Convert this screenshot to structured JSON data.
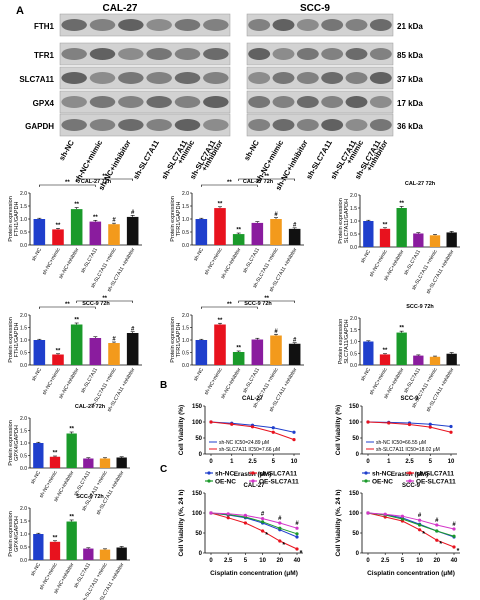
{
  "panel_labels": {
    "a": "A",
    "b": "B",
    "c": "C"
  },
  "blot": {
    "left_title": "CAL-27",
    "right_title": "SCC-9",
    "rows": [
      {
        "label": "FTH1",
        "kda": "21 kDa"
      },
      {
        "label": "TFR1",
        "kda": "85 kDa"
      },
      {
        "label": "SLC7A11",
        "kda": "37 kDa"
      },
      {
        "label": "GPX4",
        "kda": "17 kDa"
      },
      {
        "label": "GAPDH",
        "kda": "36 kDa"
      }
    ],
    "lanes": [
      "sh-NC",
      "sh-NC+mimic",
      "sh-NC+inhibitor",
      "sh-SLC7A11",
      "sh-SLC7A11 +mimic",
      "sh-SLC7A11 +inhibitor"
    ]
  },
  "chart_data": [
    {
      "id": "b1",
      "type": "bar",
      "title": "CAL-27 72h",
      "ylabel": "Protein expression FTH1/GAPDH",
      "ylim": [
        0,
        2
      ],
      "yticks": [
        "0.0",
        "0.5",
        "1.0",
        "1.5",
        "2.0"
      ],
      "categories": [
        "sh-NC",
        "sh-NC+mimic",
        "sh-NC+inhibitor",
        "sh-SLC7A11",
        "sh-SLC7A11 +mimic",
        "sh-SLC7A11 +inhibitor"
      ],
      "values": [
        1.0,
        0.6,
        1.38,
        0.9,
        0.8,
        1.08
      ],
      "errors": [
        0.03,
        0.04,
        0.06,
        0.05,
        0.04,
        0.06
      ],
      "sig": [
        "",
        "**",
        "**",
        "**",
        "#",
        "#"
      ],
      "colors": [
        "#1f3fcc",
        "#e8121e",
        "#1a9a2a",
        "#8a1c9e",
        "#f39a1c",
        "#111111"
      ],
      "brackets": [
        {
          "from": 0,
          "to": 3,
          "label": "**",
          "level": 1
        },
        {
          "from": 2,
          "to": 5,
          "label": "**",
          "level": 2
        }
      ]
    },
    {
      "id": "b2",
      "type": "bar",
      "title": "CAL-27 72h",
      "ylabel": "Protein expression TFR1/GAPDH",
      "ylim": [
        0,
        2
      ],
      "yticks": [
        "0.0",
        "0.5",
        "1.0",
        "1.5",
        "2.0"
      ],
      "categories": [
        "sh-NC",
        "sh-NC+mimic",
        "sh-NC+inhibitor",
        "sh-SLC7A11",
        "sh-SLC7A11 +mimic",
        "sh-SLC7A11 +inhibitor"
      ],
      "values": [
        1.0,
        1.42,
        0.42,
        0.85,
        1.0,
        0.62
      ],
      "errors": [
        0.03,
        0.05,
        0.04,
        0.05,
        0.05,
        0.04
      ],
      "sig": [
        "",
        "**",
        "**",
        "",
        "#",
        "#"
      ],
      "colors": [
        "#1f3fcc",
        "#e8121e",
        "#1a9a2a",
        "#8a1c9e",
        "#f39a1c",
        "#111111"
      ],
      "brackets": [
        {
          "from": 0,
          "to": 3,
          "label": "**",
          "level": 1
        },
        {
          "from": 2,
          "to": 5,
          "label": "**",
          "level": 2
        }
      ]
    },
    {
      "id": "b3",
      "type": "bar",
      "title": "CAL-27 72h",
      "ylabel": "Protein expression SLC7A11/GAPDH",
      "ylim": [
        0,
        2
      ],
      "yticks": [
        "0.0",
        "0.5",
        "1.0",
        "1.5",
        "2.0"
      ],
      "categories": [
        "sh-NC",
        "sh-NC+mimic",
        "sh-NC+inhibitor",
        "sh-SLC7A11",
        "sh-SLC7A11 +mimic",
        "sh-SLC7A11 +inhibitor"
      ],
      "values": [
        1.0,
        0.7,
        1.5,
        0.52,
        0.45,
        0.56
      ],
      "errors": [
        0.03,
        0.04,
        0.06,
        0.03,
        0.03,
        0.04
      ],
      "sig": [
        "",
        "**",
        "**",
        "",
        "",
        ""
      ],
      "colors": [
        "#1f3fcc",
        "#e8121e",
        "#1a9a2a",
        "#8a1c9e",
        "#f39a1c",
        "#111111"
      ],
      "brackets": []
    },
    {
      "id": "b4",
      "type": "bar",
      "title": "SCC-9 72h",
      "ylabel": "Protein expression FTH1/GAPDH",
      "ylim": [
        0,
        2
      ],
      "yticks": [
        "0.0",
        "0.5",
        "1.0",
        "1.5",
        "2.0"
      ],
      "categories": [
        "sh-NC",
        "sh-NC+mimic",
        "sh-NC+inhibitor",
        "sh-SLC7A11",
        "sh-SLC7A11 +mimic",
        "sh-SLC7A11 +inhibitor"
      ],
      "values": [
        1.0,
        0.42,
        1.62,
        1.08,
        0.88,
        1.28
      ],
      "errors": [
        0.03,
        0.03,
        0.06,
        0.05,
        0.04,
        0.05
      ],
      "sig": [
        "",
        "**",
        "**",
        "",
        "#",
        "#"
      ],
      "colors": [
        "#1f3fcc",
        "#e8121e",
        "#1a9a2a",
        "#8a1c9e",
        "#f39a1c",
        "#111111"
      ],
      "brackets": [
        {
          "from": 0,
          "to": 3,
          "label": "**",
          "level": 1
        },
        {
          "from": 2,
          "to": 5,
          "label": "**",
          "level": 2
        }
      ]
    },
    {
      "id": "b5",
      "type": "bar",
      "title": "SCC-9 72h",
      "ylabel": "Protein expression TFR1/GAPDH",
      "ylim": [
        0,
        2
      ],
      "yticks": [
        "0.0",
        "0.5",
        "1.0",
        "1.5",
        "2.0"
      ],
      "categories": [
        "sh-NC",
        "sh-NC+mimic",
        "sh-NC+inhibitor",
        "sh-SLC7A11",
        "sh-SLC7A11 +mimic",
        "sh-SLC7A11 +inhibitor"
      ],
      "values": [
        1.0,
        1.62,
        0.52,
        1.02,
        1.18,
        0.85
      ],
      "errors": [
        0.03,
        0.05,
        0.04,
        0.05,
        0.05,
        0.04
      ],
      "sig": [
        "",
        "**",
        "**",
        "",
        "#",
        "#"
      ],
      "colors": [
        "#1f3fcc",
        "#e8121e",
        "#1a9a2a",
        "#8a1c9e",
        "#f39a1c",
        "#111111"
      ],
      "brackets": [
        {
          "from": 0,
          "to": 3,
          "label": "**",
          "level": 1
        },
        {
          "from": 2,
          "to": 5,
          "label": "**",
          "level": 2
        }
      ]
    },
    {
      "id": "b6",
      "type": "bar",
      "title": "SCC-9 72h",
      "ylabel": "Protein expression SLC7A11/GAPDH",
      "ylim": [
        0,
        2
      ],
      "yticks": [
        "0.0",
        "0.5",
        "1.0",
        "1.5",
        "2.0"
      ],
      "categories": [
        "sh-NC",
        "sh-NC+mimic",
        "sh-NC+inhibitor",
        "sh-SLC7A11",
        "sh-SLC7A11 +mimic",
        "sh-SLC7A11 +inhibitor"
      ],
      "values": [
        1.0,
        0.45,
        1.38,
        0.4,
        0.35,
        0.48
      ],
      "errors": [
        0.03,
        0.03,
        0.06,
        0.03,
        0.03,
        0.05
      ],
      "sig": [
        "",
        "**",
        "**",
        "",
        "",
        ""
      ],
      "colors": [
        "#1f3fcc",
        "#e8121e",
        "#1a9a2a",
        "#8a1c9e",
        "#f39a1c",
        "#111111"
      ],
      "brackets": []
    },
    {
      "id": "b7",
      "type": "bar",
      "title": "CAL-27 72h",
      "ylabel": "Protein expression GPX4/GAPDH",
      "ylim": [
        0,
        2
      ],
      "yticks": [
        "0.0",
        "0.5",
        "1.0",
        "1.5",
        "2.0"
      ],
      "categories": [
        "sh-NC",
        "sh-NC+mimic",
        "sh-NC+inhibitor",
        "sh-SLC7A11",
        "sh-SLC7A11 +mimic",
        "sh-SLC7A11 +inhibitor"
      ],
      "values": [
        1.0,
        0.45,
        1.38,
        0.38,
        0.38,
        0.42
      ],
      "errors": [
        0.03,
        0.03,
        0.06,
        0.03,
        0.03,
        0.03
      ],
      "sig": [
        "",
        "**",
        "**",
        "",
        "",
        ""
      ],
      "colors": [
        "#1f3fcc",
        "#e8121e",
        "#1a9a2a",
        "#8a1c9e",
        "#f39a1c",
        "#111111"
      ],
      "brackets": []
    },
    {
      "id": "b8",
      "type": "bar",
      "title": "SCC-9 72h",
      "ylabel": "Protein expression GPX4/GAPDH",
      "ylim": [
        0,
        2
      ],
      "yticks": [
        "0.0",
        "0.5",
        "1.0",
        "1.5",
        "2.0"
      ],
      "categories": [
        "sh-NC",
        "sh-NC+mimic",
        "sh-NC+inhibitor",
        "sh-SLC7A11",
        "sh-SLC7A11 +mimic",
        "sh-SLC7A11 +inhibitor"
      ],
      "values": [
        1.0,
        0.7,
        1.48,
        0.44,
        0.4,
        0.48
      ],
      "errors": [
        0.03,
        0.04,
        0.06,
        0.03,
        0.03,
        0.04
      ],
      "sig": [
        "",
        "**",
        "**",
        "",
        "",
        ""
      ],
      "colors": [
        "#1f3fcc",
        "#e8121e",
        "#1a9a2a",
        "#8a1c9e",
        "#f39a1c",
        "#111111"
      ],
      "brackets": []
    },
    {
      "id": "l1",
      "type": "line",
      "title": "CAL-27",
      "ylabel": "Cell Viability (%)",
      "xlabel": "Erastin (μM)",
      "ylim": [
        0,
        150
      ],
      "yticks": [
        "0",
        "50",
        "100",
        "150"
      ],
      "x": [
        "0",
        "1",
        "2.5",
        "5",
        "10"
      ],
      "series": [
        {
          "name": "sh-NC",
          "label": "sh-NC IC50=24.89 μM",
          "color": "#1f3fcc",
          "values": [
            100,
            96,
            90,
            82,
            68
          ]
        },
        {
          "name": "sh-SLC7A11",
          "label": "sh-SLC7A11 IC50=7.66 μM",
          "color": "#e8121e",
          "values": [
            100,
            93,
            85,
            68,
            45
          ]
        }
      ]
    },
    {
      "id": "l2",
      "type": "line",
      "title": "SCC-9",
      "ylabel": "Cell Viability (%)",
      "xlabel": "Erastin (μM)",
      "ylim": [
        0,
        150
      ],
      "yticks": [
        "0",
        "50",
        "100",
        "150"
      ],
      "x": [
        "0",
        "1",
        "2.5",
        "5",
        "10"
      ],
      "series": [
        {
          "name": "sh-NC",
          "label": "sh-NC IC50=66.55 μM",
          "color": "#1f3fcc",
          "values": [
            100,
            99,
            97,
            93,
            86
          ]
        },
        {
          "name": "sh-SLC7A11",
          "label": "sh-SLC7A11 IC50=18.02 μM",
          "color": "#e8121e",
          "values": [
            100,
            97,
            92,
            84,
            68
          ]
        }
      ]
    },
    {
      "id": "c1",
      "type": "line",
      "title": "CAL-27",
      "ylabel": "Cell Viability (%, 24 h)",
      "xlabel": "Cisplatin concentration (μM)",
      "ylim": [
        0,
        150
      ],
      "yticks": [
        "0",
        "50",
        "100",
        "150"
      ],
      "x": [
        "0",
        "2.5",
        "5",
        "10",
        "20",
        "40"
      ],
      "sig": [
        "",
        "",
        "",
        "#",
        "#",
        "#"
      ],
      "series": [
        {
          "name": "sh-NC",
          "color": "#1f3fcc",
          "values": [
            100,
            95,
            88,
            75,
            58,
            40
          ]
        },
        {
          "name": "sh-SLC7A11",
          "color": "#e8121e",
          "values": [
            100,
            88,
            75,
            55,
            30,
            10
          ]
        },
        {
          "name": "OE-NC",
          "color": "#1a9a2a",
          "values": [
            100,
            96,
            90,
            78,
            62,
            48
          ]
        },
        {
          "name": "OE-SLC7A11",
          "color": "#d436c9",
          "values": [
            100,
            98,
            94,
            86,
            75,
            62
          ]
        }
      ]
    },
    {
      "id": "c2",
      "type": "line",
      "title": "SCC-9",
      "ylabel": "Cell Viability (%, 24 h)",
      "xlabel": "Cisplatin concentration (μM)",
      "ylim": [
        0,
        150
      ],
      "yticks": [
        "0",
        "50",
        "100",
        "150"
      ],
      "x": [
        "0",
        "2.5",
        "5",
        "10",
        "20",
        "40"
      ],
      "sig": [
        "",
        "",
        "",
        "#",
        "#",
        "#"
      ],
      "series": [
        {
          "name": "sh-NC",
          "color": "#1f3fcc",
          "values": [
            100,
            96,
            88,
            72,
            55,
            40
          ]
        },
        {
          "name": "sh-SLC7A11",
          "color": "#e8121e",
          "values": [
            100,
            90,
            80,
            58,
            32,
            15
          ]
        },
        {
          "name": "OE-NC",
          "color": "#1a9a2a",
          "values": [
            100,
            95,
            85,
            70,
            55,
            42
          ]
        },
        {
          "name": "OE-SLC7A11",
          "color": "#d436c9",
          "values": [
            100,
            97,
            92,
            82,
            70,
            60
          ]
        }
      ]
    }
  ]
}
